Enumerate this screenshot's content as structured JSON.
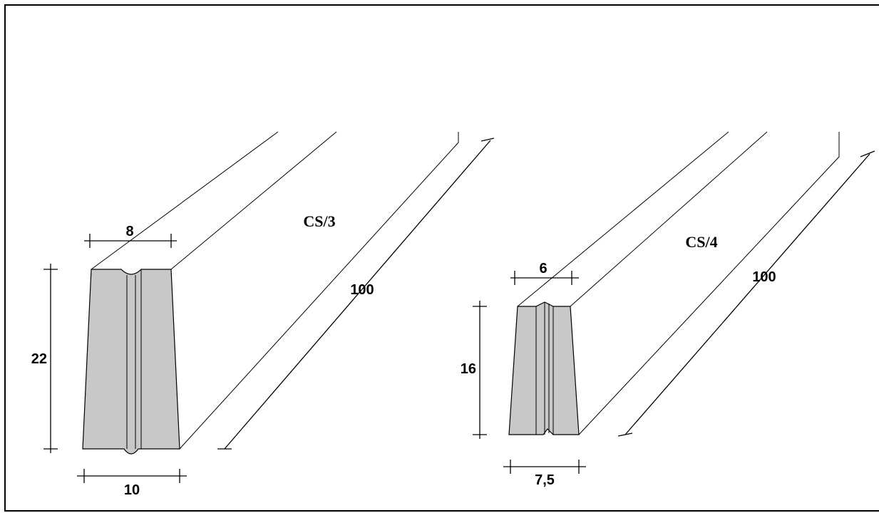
{
  "drawing": {
    "profiles": [
      {
        "name": "CS/3",
        "top_width": "8",
        "height": "22",
        "bottom_width": "10",
        "length": "100"
      },
      {
        "name": "CS/4",
        "top_width": "6",
        "height": "16",
        "bottom_width": "7,5",
        "length": "100"
      }
    ]
  }
}
